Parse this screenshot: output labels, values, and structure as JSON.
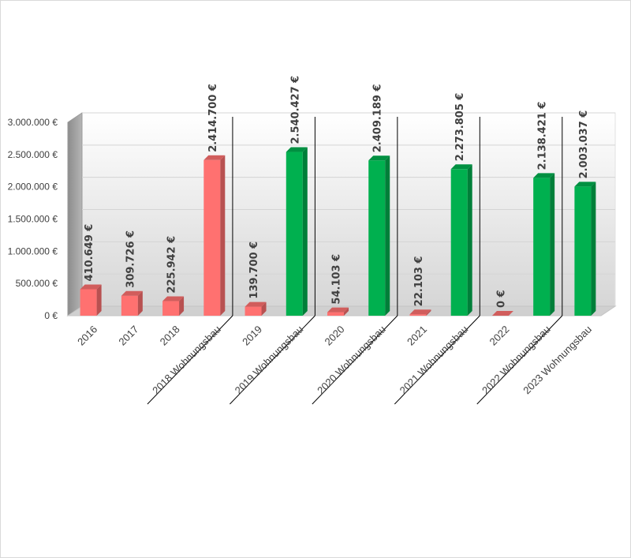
{
  "chart_data": {
    "type": "bar",
    "style": "3d-column",
    "categories": [
      "2016",
      "2017",
      "2018",
      "2018 Wohnungsbau",
      "2019",
      "2019 Wohnungsbau",
      "2020",
      "2020 Wohnungsbau",
      "2021",
      "2021 Wohnungsbau",
      "2022",
      "2022 Wohnungsbau",
      "2023 Wohnungsbau"
    ],
    "values": [
      410649,
      309726,
      225942,
      2414700,
      139700,
      2540427,
      54103,
      2409189,
      22103,
      2273805,
      0,
      2138421,
      2003037
    ],
    "data_labels": [
      "410.649 €",
      "309.726 €",
      "225.942 €",
      "2.414.700 €",
      "139.700 €",
      "2.540.427 €",
      "54.103 €",
      "2.409.189 €",
      "22.103 €",
      "2.273.805 €",
      "0 €",
      "2.138.421 €",
      "2.003.037 €"
    ],
    "bar_colors": [
      "#ff7170",
      "#ff7170",
      "#ff7170",
      "#ff7170",
      "#ff7170",
      "#00b04f",
      "#ff7170",
      "#00b04f",
      "#ff7170",
      "#00b04f",
      "#ff7170",
      "#00b04f",
      "#00b04f"
    ],
    "y_ticks": [
      0,
      500000,
      1000000,
      1500000,
      2000000,
      2500000,
      3000000
    ],
    "y_tick_labels": [
      "0 €",
      "500.000 €",
      "1.000.000 €",
      "1.500.000 €",
      "2.000.000 €",
      "2.500.000 €",
      "3.000.000 €"
    ],
    "ylim": [
      0,
      3000000
    ],
    "grid": true,
    "legend": "none",
    "title": "",
    "xlabel": "",
    "ylabel": ""
  }
}
